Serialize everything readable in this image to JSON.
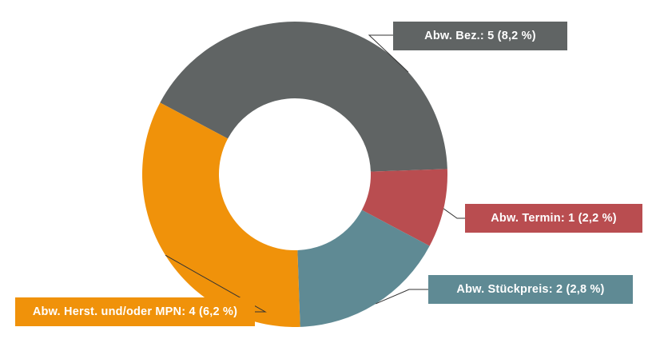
{
  "chart_data": {
    "type": "pie",
    "donut": true,
    "legend": "callouts",
    "slices": [
      {
        "label": "Abw. Bez.: 5 (8,2 %)",
        "value": 5,
        "percent": 8.2,
        "color": "#606464"
      },
      {
        "label": "Abw. Termin: 1 (2,2 %)",
        "value": 1,
        "percent": 2.2,
        "color": "#b94d50"
      },
      {
        "label": "Abw. Stückpreis: 2 (2,8 %)",
        "value": 2,
        "percent": 2.8,
        "color": "#5f8a94"
      },
      {
        "label": "Abw. Herst. und/oder MPN: 4 (6,2 %)",
        "value": 4,
        "percent": 6.2,
        "color": "#f0920a"
      }
    ]
  }
}
